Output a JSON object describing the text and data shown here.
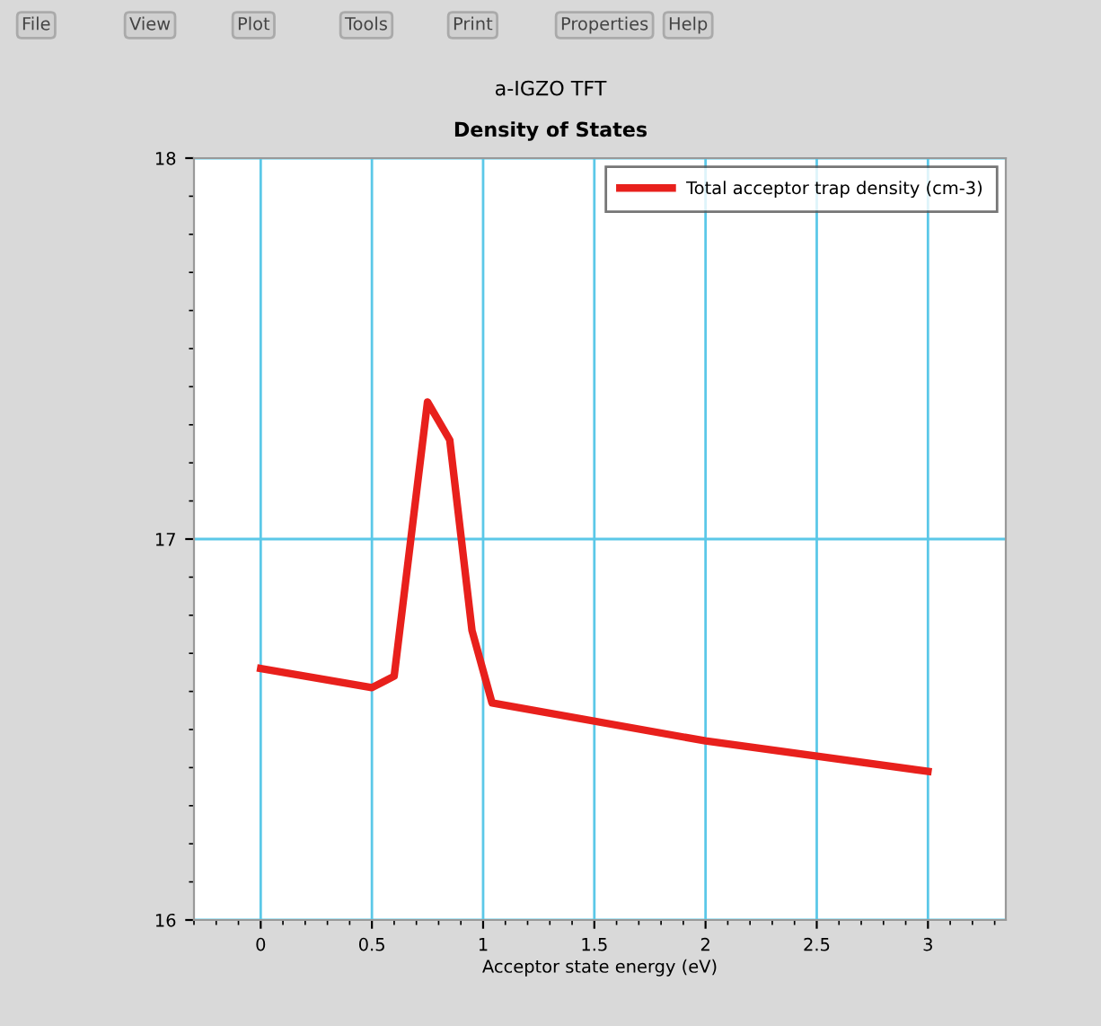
{
  "chart_data": {
    "type": "line",
    "title": "a-IGZO TFT",
    "subtitle": "Density of States",
    "xlabel": "Acceptor state energy (eV)",
    "annotations": [
      "File",
      "View",
      "Plot",
      "Tools",
      "Print",
      "Properties",
      "Help"
    ],
    "x": [
      0,
      0.5,
      0.6,
      0.75,
      0.85,
      0.95,
      1.04,
      2,
      3
    ],
    "series": [
      {
        "name": "Total acceptor trap density (cm-3)",
        "color": "#e8201c",
        "values": [
          16.66,
          16.61,
          16.64,
          17.36,
          17.26,
          16.76,
          16.57,
          16.47,
          16.39
        ]
      }
    ],
    "xlim": [
      -0.3,
      3.35
    ],
    "xticks": [
      0,
      0.5,
      1,
      1.5,
      2,
      2.5,
      3
    ],
    "ylim": [
      16,
      18
    ],
    "yticks": [
      16,
      17,
      18
    ],
    "grid": true,
    "legend": "top right",
    "marker": "none",
    "line_style": "solid"
  }
}
